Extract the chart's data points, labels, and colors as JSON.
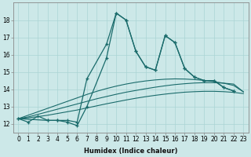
{
  "xlabel": "Humidex (Indice chaleur)",
  "bg_color": "#cce8e8",
  "line_color": "#1a6b6b",
  "xlim": [
    -0.5,
    23.5
  ],
  "ylim": [
    11.5,
    19.0
  ],
  "ytick_values": [
    12,
    13,
    14,
    15,
    16,
    17,
    18
  ],
  "series_main": [
    {
      "x": [
        0,
        1,
        2,
        3,
        4,
        5,
        6,
        7,
        9,
        10,
        11,
        12,
        13,
        14,
        15,
        16,
        17,
        18,
        19,
        20,
        21,
        22
      ],
      "y": [
        12.3,
        12.1,
        12.45,
        12.2,
        12.2,
        12.2,
        12.1,
        14.6,
        16.6,
        18.4,
        18.0,
        16.2,
        15.3,
        15.1,
        17.1,
        16.7,
        15.2,
        14.7,
        14.5,
        14.5,
        14.1,
        13.9
      ]
    },
    {
      "x": [
        0,
        3,
        4,
        5,
        6,
        7,
        9,
        10,
        11,
        12,
        13,
        14,
        15,
        16,
        17,
        18,
        19,
        20,
        21,
        22
      ],
      "y": [
        12.3,
        12.2,
        12.2,
        12.1,
        11.9,
        13.0,
        15.8,
        18.4,
        18.0,
        16.2,
        15.3,
        15.1,
        17.1,
        16.7,
        15.2,
        14.7,
        14.5,
        14.5,
        14.1,
        13.9
      ]
    }
  ],
  "series_trend": [
    {
      "x": [
        0,
        1,
        2,
        3,
        4,
        5,
        6,
        7,
        8,
        9,
        10,
        11,
        12,
        13,
        14,
        15,
        16,
        17,
        18,
        19,
        20,
        21,
        22,
        23
      ],
      "y": [
        12.3,
        12.4,
        12.55,
        12.7,
        12.85,
        13.0,
        13.15,
        13.3,
        13.45,
        13.58,
        13.71,
        13.83,
        13.93,
        14.03,
        14.12,
        14.2,
        14.27,
        14.32,
        14.36,
        14.38,
        14.38,
        14.35,
        14.3,
        13.85
      ]
    },
    {
      "x": [
        0,
        1,
        2,
        3,
        4,
        5,
        6,
        7,
        8,
        9,
        10,
        11,
        12,
        13,
        14,
        15,
        16,
        17,
        18,
        19,
        20,
        21,
        22,
        23
      ],
      "y": [
        12.3,
        12.5,
        12.7,
        12.9,
        13.1,
        13.3,
        13.5,
        13.7,
        13.88,
        14.04,
        14.18,
        14.3,
        14.4,
        14.48,
        14.54,
        14.58,
        14.6,
        14.59,
        14.56,
        14.51,
        14.44,
        14.35,
        14.22,
        13.85
      ]
    },
    {
      "x": [
        0,
        1,
        2,
        3,
        4,
        5,
        6,
        7,
        8,
        9,
        10,
        11,
        12,
        13,
        14,
        15,
        16,
        17,
        18,
        19,
        20,
        21,
        22,
        23
      ],
      "y": [
        12.3,
        12.35,
        12.42,
        12.5,
        12.6,
        12.7,
        12.8,
        12.92,
        13.04,
        13.16,
        13.27,
        13.38,
        13.48,
        13.57,
        13.65,
        13.72,
        13.78,
        13.83,
        13.86,
        13.88,
        13.88,
        13.86,
        13.82,
        13.75
      ]
    }
  ],
  "grid_color": "#aad4d4",
  "title_fontsize": 7,
  "xlabel_fontsize": 6,
  "tick_fontsize": 5.5
}
